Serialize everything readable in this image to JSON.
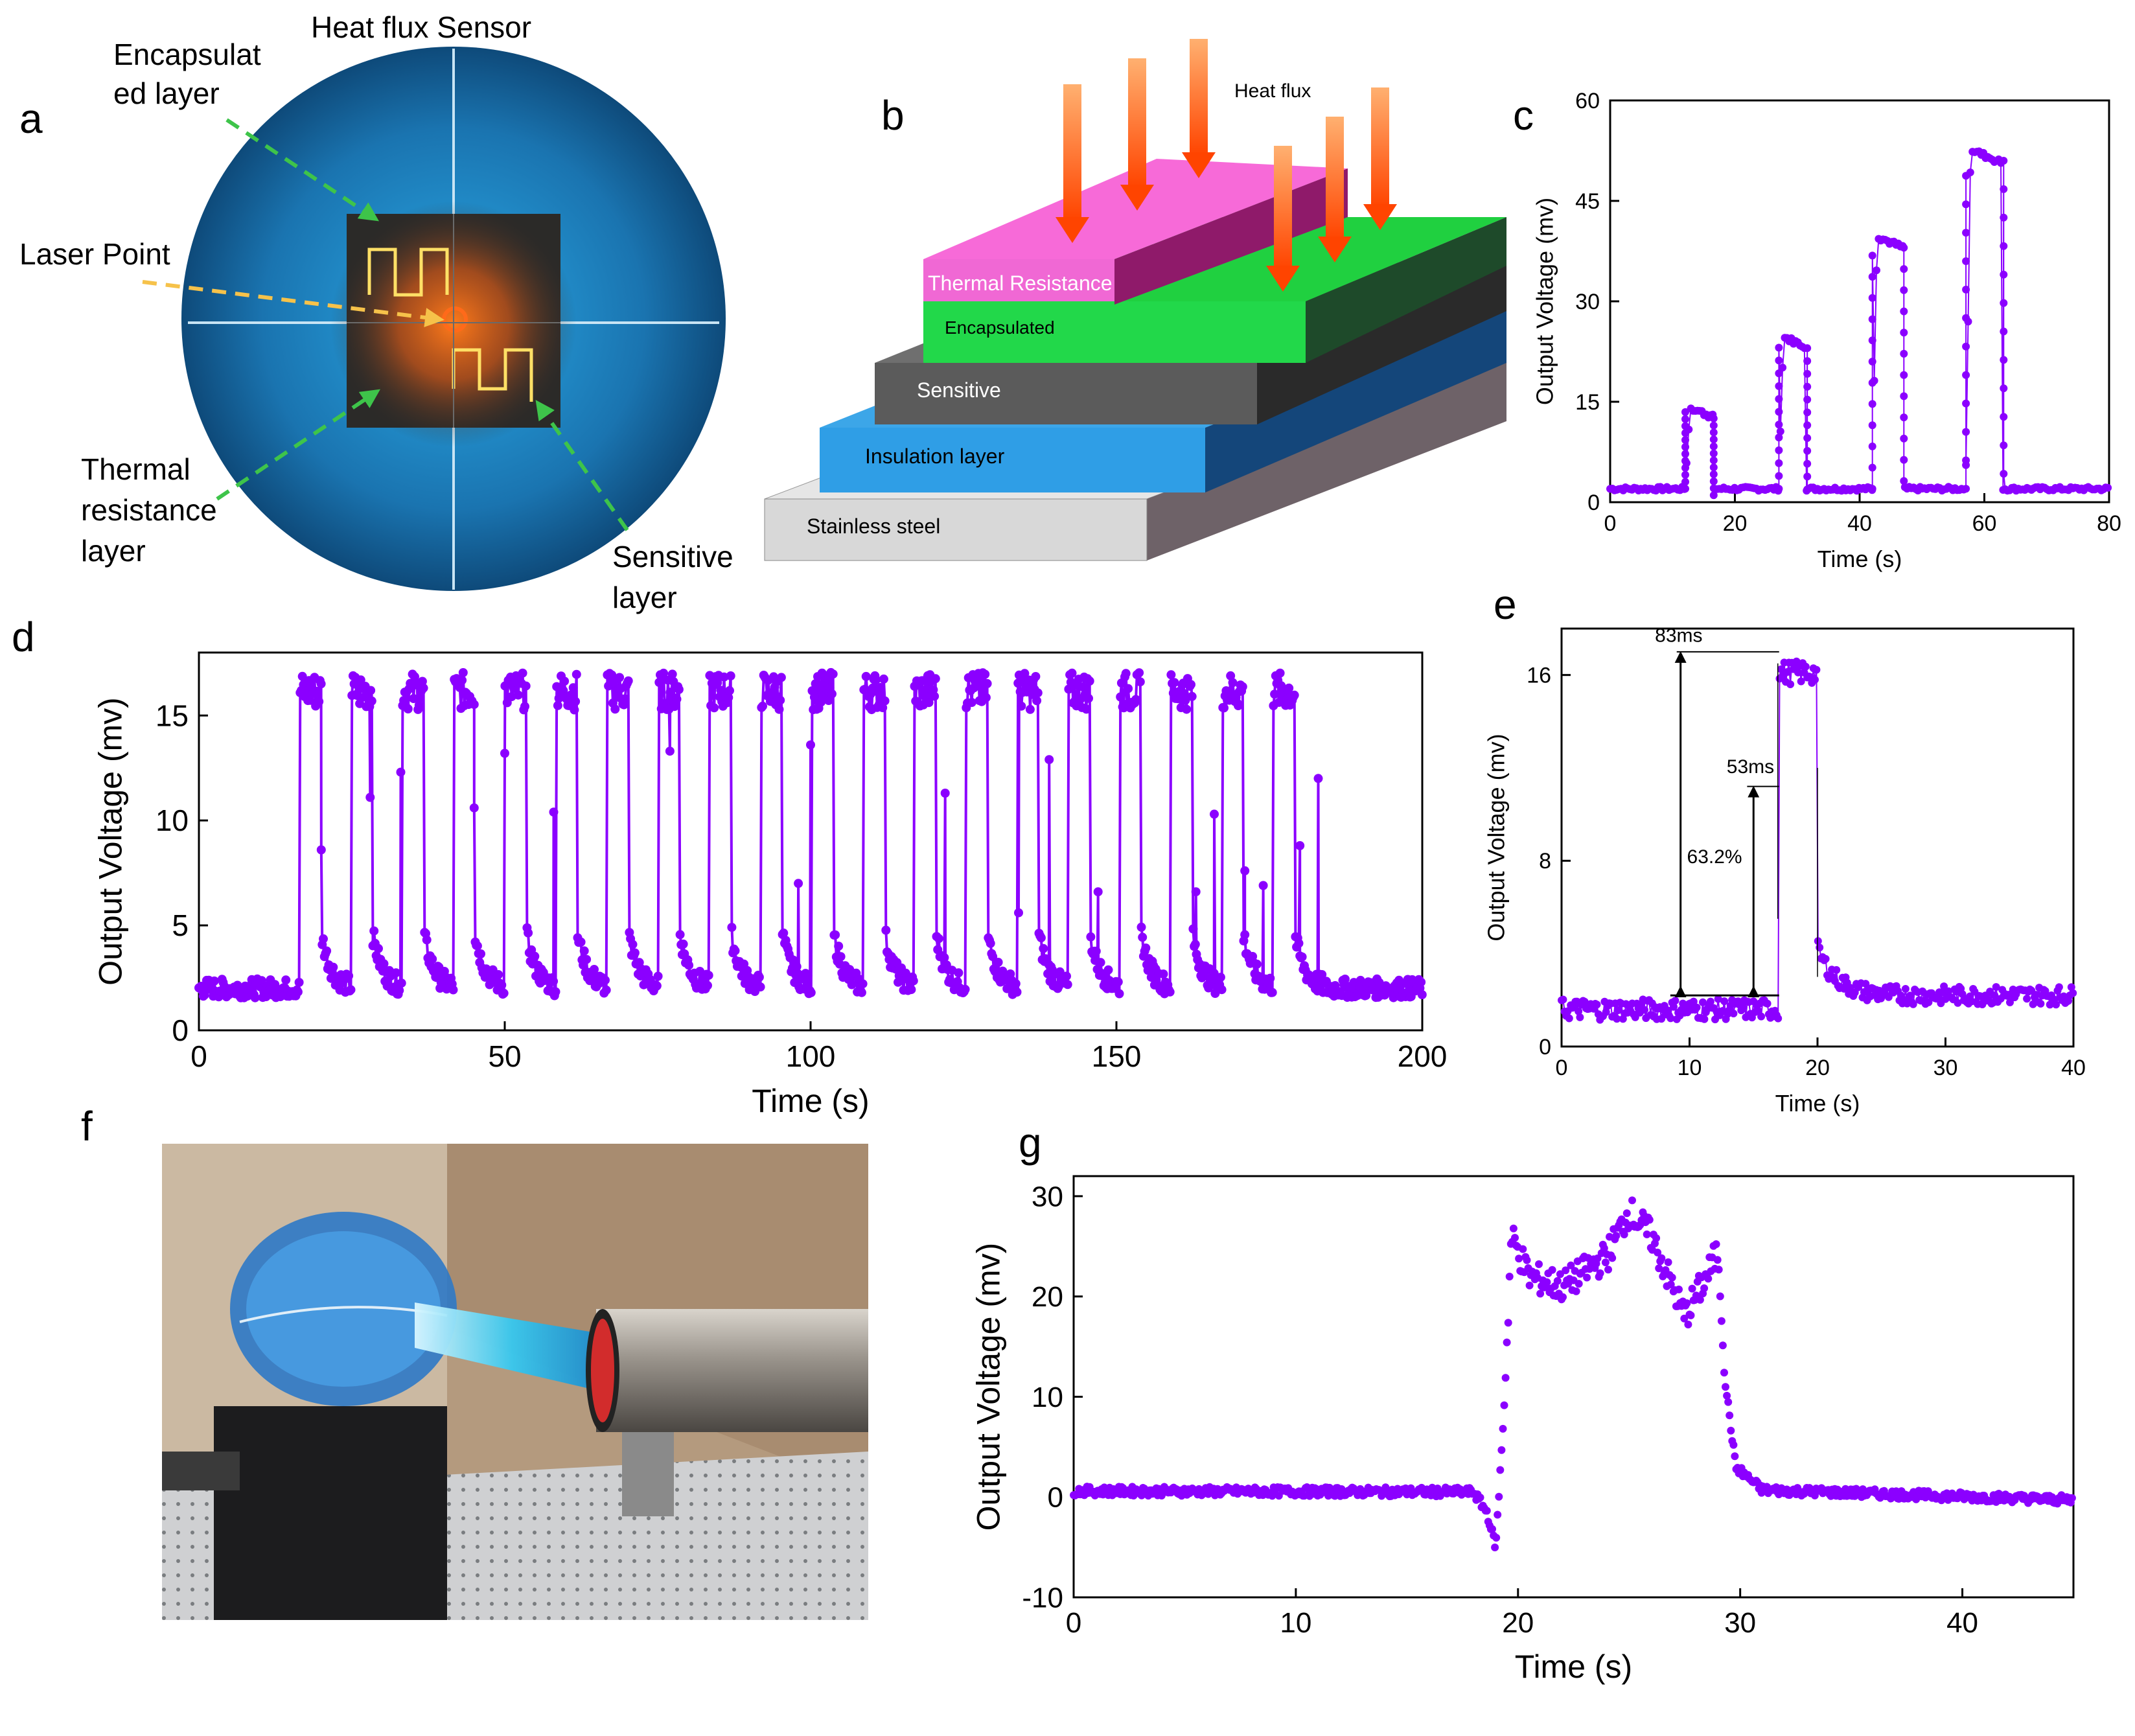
{
  "colors": {
    "series": "#8B00FF",
    "axis": "#000000",
    "orange": "#FF6A1A"
  },
  "panels": {
    "a": {
      "letter": "a",
      "title": "Heat flux Sensor",
      "labels": {
        "encapsulated_1": "Encapsulat",
        "encapsulated_2": "ed layer",
        "laser": "Laser Point",
        "thermal_1": "Thermal",
        "thermal_2": "resistance",
        "thermal_3": "layer",
        "sensitive_1": "Sensitive",
        "sensitive_2": "layer"
      }
    },
    "b": {
      "letter": "b",
      "heat_flux": "Heat flux",
      "layers": [
        "Thermal Resistance",
        "Encapsulated",
        "Sensitive",
        "Insulation layer",
        "Stainless steel"
      ]
    },
    "f": {
      "letter": "f",
      "photo_desc_icon": "flame-torch-photo"
    }
  },
  "chart_data": [
    {
      "id": "c",
      "type": "scatter",
      "letter": "c",
      "xlabel": "Time (s)",
      "ylabel": "Output Voltage (mv)",
      "xlim": [
        0,
        80
      ],
      "ylim": [
        0,
        60
      ],
      "xticks": [
        0,
        20,
        40,
        60,
        80
      ],
      "yticks": [
        0,
        15,
        30,
        45,
        60
      ],
      "pulses": [
        {
          "start": 12,
          "end": 16.5,
          "level": 14.5
        },
        {
          "start": 27,
          "end": 31.5,
          "level": 25
        },
        {
          "start": 42,
          "end": 47,
          "level": 40
        },
        {
          "start": 57,
          "end": 63,
          "level": 53
        }
      ],
      "baseline": 2
    },
    {
      "id": "d",
      "type": "scatter",
      "letter": "d",
      "xlabel": "Time (s)",
      "ylabel": "Output Voltage (mv)",
      "xlim": [
        0,
        200
      ],
      "ylim": [
        0,
        18
      ],
      "xticks": [
        0,
        50,
        100,
        150,
        200
      ],
      "yticks": [
        0,
        5,
        10,
        15
      ],
      "baseline": 2,
      "cycles_start": 16.5,
      "cycles_end": 184,
      "cycle_count": 20,
      "high_level": 15.8,
      "mid_points": [
        [
          20,
          8.6
        ],
        [
          28,
          11.1
        ],
        [
          33,
          12.3
        ],
        [
          45,
          10.6
        ],
        [
          50,
          13.2
        ],
        [
          58,
          10.4
        ],
        [
          77,
          13.3
        ],
        [
          98,
          7
        ],
        [
          100,
          13.6
        ],
        [
          122,
          11.3
        ],
        [
          134,
          5.6
        ],
        [
          139,
          12.9
        ],
        [
          147,
          6.6
        ],
        [
          163,
          6.6
        ],
        [
          166,
          10.3
        ],
        [
          171,
          7.6
        ],
        [
          174,
          6.9
        ],
        [
          180,
          8.8
        ],
        [
          183,
          12
        ]
      ]
    },
    {
      "id": "e",
      "type": "scatter",
      "letter": "e",
      "xlabel": "Time (s)",
      "ylabel": "Output Voltage (mv)",
      "xlim": [
        0,
        40
      ],
      "ylim": [
        0,
        18
      ],
      "xticks": [
        0,
        10,
        20,
        30,
        40
      ],
      "yticks": [
        0,
        8,
        16
      ],
      "baseline": 1.6,
      "rise_time": 17,
      "fall_time": 20,
      "peak": 16,
      "annotations": {
        "a83": "83ms",
        "a53": "53ms",
        "pct": "63.2%"
      }
    },
    {
      "id": "g",
      "type": "scatter",
      "letter": "g",
      "xlabel": "Time (s)",
      "ylabel": "Output Voltage (mv)",
      "xlim": [
        0,
        45
      ],
      "ylim": [
        -10,
        32
      ],
      "xticks": [
        0,
        10,
        20,
        30,
        40
      ],
      "yticks": [
        -10,
        0,
        10,
        20,
        30
      ],
      "baseline": 0.5,
      "profile": [
        [
          0,
          0.6
        ],
        [
          18,
          0.5
        ],
        [
          18.6,
          -1.5
        ],
        [
          19,
          -5
        ],
        [
          19.4,
          10
        ],
        [
          19.7,
          26
        ],
        [
          20.5,
          22
        ],
        [
          22,
          21
        ],
        [
          24,
          24
        ],
        [
          25,
          28.5
        ],
        [
          26,
          26
        ],
        [
          27.5,
          18
        ],
        [
          28.5,
          22
        ],
        [
          29,
          24.5
        ],
        [
          29.3,
          12
        ],
        [
          29.8,
          3
        ],
        [
          31,
          0.7
        ],
        [
          45,
          -0.3
        ]
      ]
    }
  ]
}
